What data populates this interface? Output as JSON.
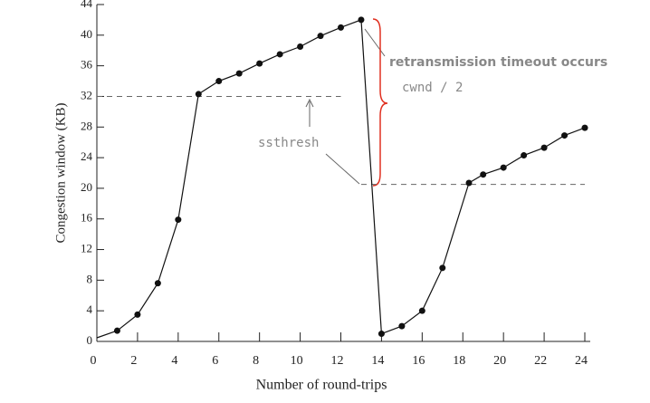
{
  "chart_data": {
    "type": "line",
    "x_label": "Number of round-trips",
    "y_label": "Congestion window (KB)",
    "x": [
      1,
      2,
      3,
      4,
      5,
      6,
      7,
      8,
      9,
      10,
      11,
      12,
      13,
      14,
      15,
      16,
      17,
      18.3,
      19,
      20,
      21,
      22,
      23,
      24
    ],
    "series": [
      {
        "color": "#111111",
        "values": [
          1.4,
          3.5,
          7.6,
          15.9,
          32.3,
          34,
          35,
          36.3,
          37.5,
          38.5,
          39.9,
          41,
          42,
          1,
          2,
          4,
          9.6,
          20.7,
          21.8,
          22.7,
          24.3,
          25.3,
          26.9,
          27.9
        ]
      }
    ],
    "thresholds": [
      {
        "value": 32,
        "from": 0,
        "to": 12
      },
      {
        "value": 20.5,
        "from": 13,
        "to": 24
      }
    ],
    "annotations": {
      "timeout": "retransmission timeout occurs",
      "half": "cwnd / 2",
      "ssthresh": "ssthresh"
    },
    "xlim": [
      0,
      24
    ],
    "xticks": [
      0,
      2,
      4,
      6,
      8,
      10,
      12,
      14,
      16,
      18,
      20,
      22,
      24
    ],
    "ylim": [
      0,
      44
    ],
    "yticks": [
      0,
      4,
      8,
      12,
      16,
      20,
      24,
      28,
      32,
      36,
      40,
      44
    ]
  }
}
